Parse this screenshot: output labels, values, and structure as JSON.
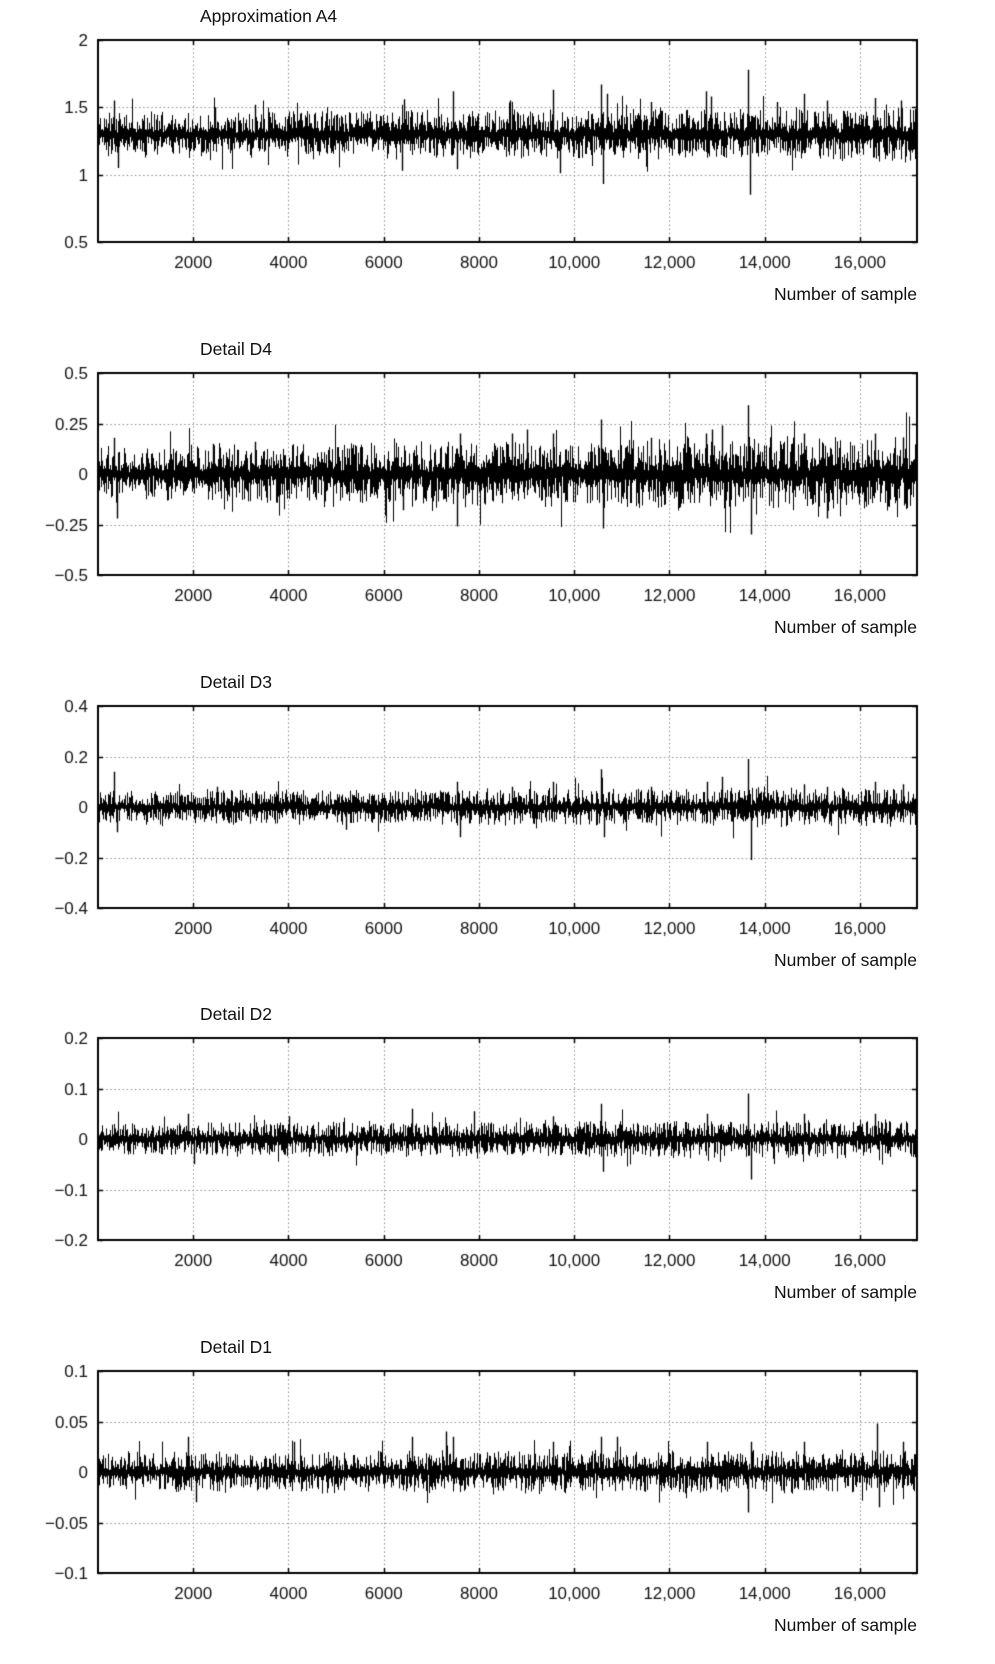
{
  "page": {
    "background": "#ffffff",
    "signal_color": "#000000",
    "grid_color": "#8f8f8f",
    "axis_color": "#000000",
    "text_color": "#111111"
  },
  "chart_data": [
    {
      "type": "line",
      "title": "Approximation A4",
      "xlabel": "Number of sample",
      "xlim": [
        0,
        17200
      ],
      "xticks": [
        2000,
        4000,
        6000,
        8000,
        10000,
        12000,
        14000,
        16000
      ],
      "xtick_labels": [
        "2000",
        "4000",
        "6000",
        "8000",
        "10,000",
        "12,000",
        "14,000",
        "16,000"
      ],
      "ylim": [
        0.5,
        2
      ],
      "yticks": [
        2,
        1.5,
        1,
        0.5
      ],
      "ytick_labels": [
        "2",
        "1.5",
        "1",
        "0.5"
      ],
      "grid": true,
      "legend": false,
      "seed": 11,
      "signal_model": {
        "baseline": 1.3,
        "noise_amp": 0.1,
        "amp_growth": 1.25,
        "n_samples": 17200,
        "spikes": [
          [
            330,
            1.55
          ],
          [
            420,
            1.05
          ],
          [
            2450,
            1.5
          ],
          [
            3300,
            1.52
          ],
          [
            6380,
            1.03
          ],
          [
            6430,
            1.56
          ],
          [
            7450,
            1.62
          ],
          [
            7530,
            1.04
          ],
          [
            8650,
            1.55
          ],
          [
            9560,
            1.63
          ],
          [
            9700,
            1.01
          ],
          [
            10560,
            1.67
          ],
          [
            10610,
            0.93
          ],
          [
            10700,
            1.6
          ],
          [
            11620,
            1.54
          ],
          [
            12760,
            1.62
          ],
          [
            12880,
            1.58
          ],
          [
            13660,
            1.78
          ],
          [
            13700,
            0.85
          ],
          [
            14260,
            1.54
          ],
          [
            14820,
            1.6
          ],
          [
            15320,
            1.55
          ],
          [
            16320,
            1.57
          ],
          [
            16860,
            1.55
          ]
        ]
      }
    },
    {
      "type": "line",
      "title": "Detail D4",
      "xlabel": "Number of sample",
      "xlim": [
        0,
        17200
      ],
      "xticks": [
        2000,
        4000,
        6000,
        8000,
        10000,
        12000,
        14000,
        16000
      ],
      "xtick_labels": [
        "2000",
        "4000",
        "6000",
        "8000",
        "10,000",
        "12,000",
        "14,000",
        "16,000"
      ],
      "ylim": [
        -0.5,
        0.5
      ],
      "yticks": [
        0.5,
        0.25,
        0,
        -0.25,
        -0.5
      ],
      "ytick_labels": [
        "0.5",
        "0.25",
        "0",
        "−0.25",
        "−0.5"
      ],
      "grid": true,
      "legend": false,
      "seed": 22,
      "signal_model": {
        "baseline": 0,
        "noise_amp": 0.08,
        "amp_growth": 1.5,
        "n_samples": 17200,
        "spikes": [
          [
            340,
            0.18
          ],
          [
            390,
            -0.22
          ],
          [
            2420,
            0.15
          ],
          [
            3300,
            0.16
          ],
          [
            6400,
            -0.18
          ],
          [
            7540,
            -0.26
          ],
          [
            7610,
            0.2
          ],
          [
            8700,
            0.2
          ],
          [
            9010,
            0.22
          ],
          [
            9560,
            0.2
          ],
          [
            10560,
            0.27
          ],
          [
            10610,
            -0.27
          ],
          [
            11620,
            0.18
          ],
          [
            12760,
            0.2
          ],
          [
            12900,
            0.22
          ],
          [
            13110,
            0.24
          ],
          [
            13660,
            0.34
          ],
          [
            13710,
            -0.3
          ],
          [
            14820,
            0.2
          ],
          [
            15320,
            -0.22
          ],
          [
            16320,
            0.2
          ],
          [
            16900,
            0.18
          ]
        ]
      }
    },
    {
      "type": "line",
      "title": "Detail D3",
      "xlabel": "Number of sample",
      "xlim": [
        0,
        17200
      ],
      "xticks": [
        2000,
        4000,
        6000,
        8000,
        10000,
        12000,
        14000,
        16000
      ],
      "xtick_labels": [
        "2000",
        "4000",
        "6000",
        "8000",
        "10,000",
        "12,000",
        "14,000",
        "16,000"
      ],
      "ylim": [
        -0.4,
        0.4
      ],
      "yticks": [
        0.4,
        0.2,
        0,
        -0.2,
        -0.4
      ],
      "ytick_labels": [
        "0.4",
        "0.2",
        "0",
        "−0.2",
        "−0.4"
      ],
      "grid": true,
      "legend": false,
      "seed": 33,
      "signal_model": {
        "baseline": 0,
        "noise_amp": 0.04,
        "amp_growth": 1.2,
        "n_samples": 17200,
        "spikes": [
          [
            340,
            0.14
          ],
          [
            390,
            -0.1
          ],
          [
            2500,
            0.08
          ],
          [
            5200,
            -0.09
          ],
          [
            7540,
            0.1
          ],
          [
            7610,
            -0.12
          ],
          [
            8700,
            0.08
          ],
          [
            9560,
            0.1
          ],
          [
            10560,
            0.15
          ],
          [
            10620,
            -0.12
          ],
          [
            11620,
            0.08
          ],
          [
            12800,
            0.1
          ],
          [
            13110,
            0.12
          ],
          [
            13660,
            0.19
          ],
          [
            13710,
            -0.21
          ],
          [
            14820,
            0.09
          ],
          [
            15320,
            0.08
          ],
          [
            16320,
            0.1
          ],
          [
            16900,
            0.09
          ]
        ]
      }
    },
    {
      "type": "line",
      "title": "Detail D2",
      "xlabel": "Number of sample",
      "xlim": [
        0,
        17200
      ],
      "xticks": [
        2000,
        4000,
        6000,
        8000,
        10000,
        12000,
        14000,
        16000
      ],
      "xtick_labels": [
        "2000",
        "4000",
        "6000",
        "8000",
        "10,000",
        "12,000",
        "14,000",
        "16,000"
      ],
      "ylim": [
        -0.2,
        0.2
      ],
      "yticks": [
        0.2,
        0.1,
        0,
        -0.1,
        -0.2
      ],
      "ytick_labels": [
        "0.2",
        "0.1",
        "0",
        "−0.1",
        "−0.2"
      ],
      "grid": true,
      "legend": false,
      "seed": 44,
      "signal_model": {
        "baseline": 0,
        "noise_amp": 0.02,
        "amp_growth": 1.15,
        "n_samples": 17200,
        "spikes": [
          [
            1900,
            0.05
          ],
          [
            2020,
            -0.05
          ],
          [
            4010,
            0.045
          ],
          [
            6600,
            0.06
          ],
          [
            7900,
            0.055
          ],
          [
            9560,
            0.045
          ],
          [
            10560,
            0.07
          ],
          [
            10610,
            -0.065
          ],
          [
            12800,
            0.05
          ],
          [
            13660,
            0.09
          ],
          [
            13710,
            -0.08
          ],
          [
            14820,
            0.05
          ],
          [
            16320,
            0.05
          ]
        ]
      }
    },
    {
      "type": "line",
      "title": "Detail D1",
      "xlabel": "Number of sample",
      "xlim": [
        0,
        17200
      ],
      "xticks": [
        2000,
        4000,
        6000,
        8000,
        10000,
        12000,
        14000,
        16000
      ],
      "xtick_labels": [
        "2000",
        "4000",
        "6000",
        "8000",
        "10,000",
        "12,000",
        "14,000",
        "16,000"
      ],
      "ylim": [
        -0.1,
        0.1
      ],
      "yticks": [
        0.1,
        0.05,
        0,
        -0.05,
        -0.1
      ],
      "ytick_labels": [
        "0.1",
        "0.05",
        "0",
        "−0.05",
        "−0.1"
      ],
      "grid": true,
      "legend": false,
      "seed": 55,
      "signal_model": {
        "baseline": 0,
        "noise_amp": 0.012,
        "amp_growth": 1.1,
        "n_samples": 17200,
        "spikes": [
          [
            1900,
            0.035
          ],
          [
            2060,
            -0.03
          ],
          [
            4110,
            0.03
          ],
          [
            6600,
            0.035
          ],
          [
            7310,
            0.04
          ],
          [
            7460,
            0.035
          ],
          [
            9560,
            0.03
          ],
          [
            10560,
            0.035
          ],
          [
            10910,
            0.035
          ],
          [
            12800,
            0.03
          ],
          [
            13660,
            -0.04
          ],
          [
            13720,
            0.03
          ],
          [
            14820,
            0.03
          ],
          [
            16360,
            0.048
          ],
          [
            16410,
            -0.035
          ],
          [
            16900,
            0.03
          ]
        ]
      }
    }
  ]
}
